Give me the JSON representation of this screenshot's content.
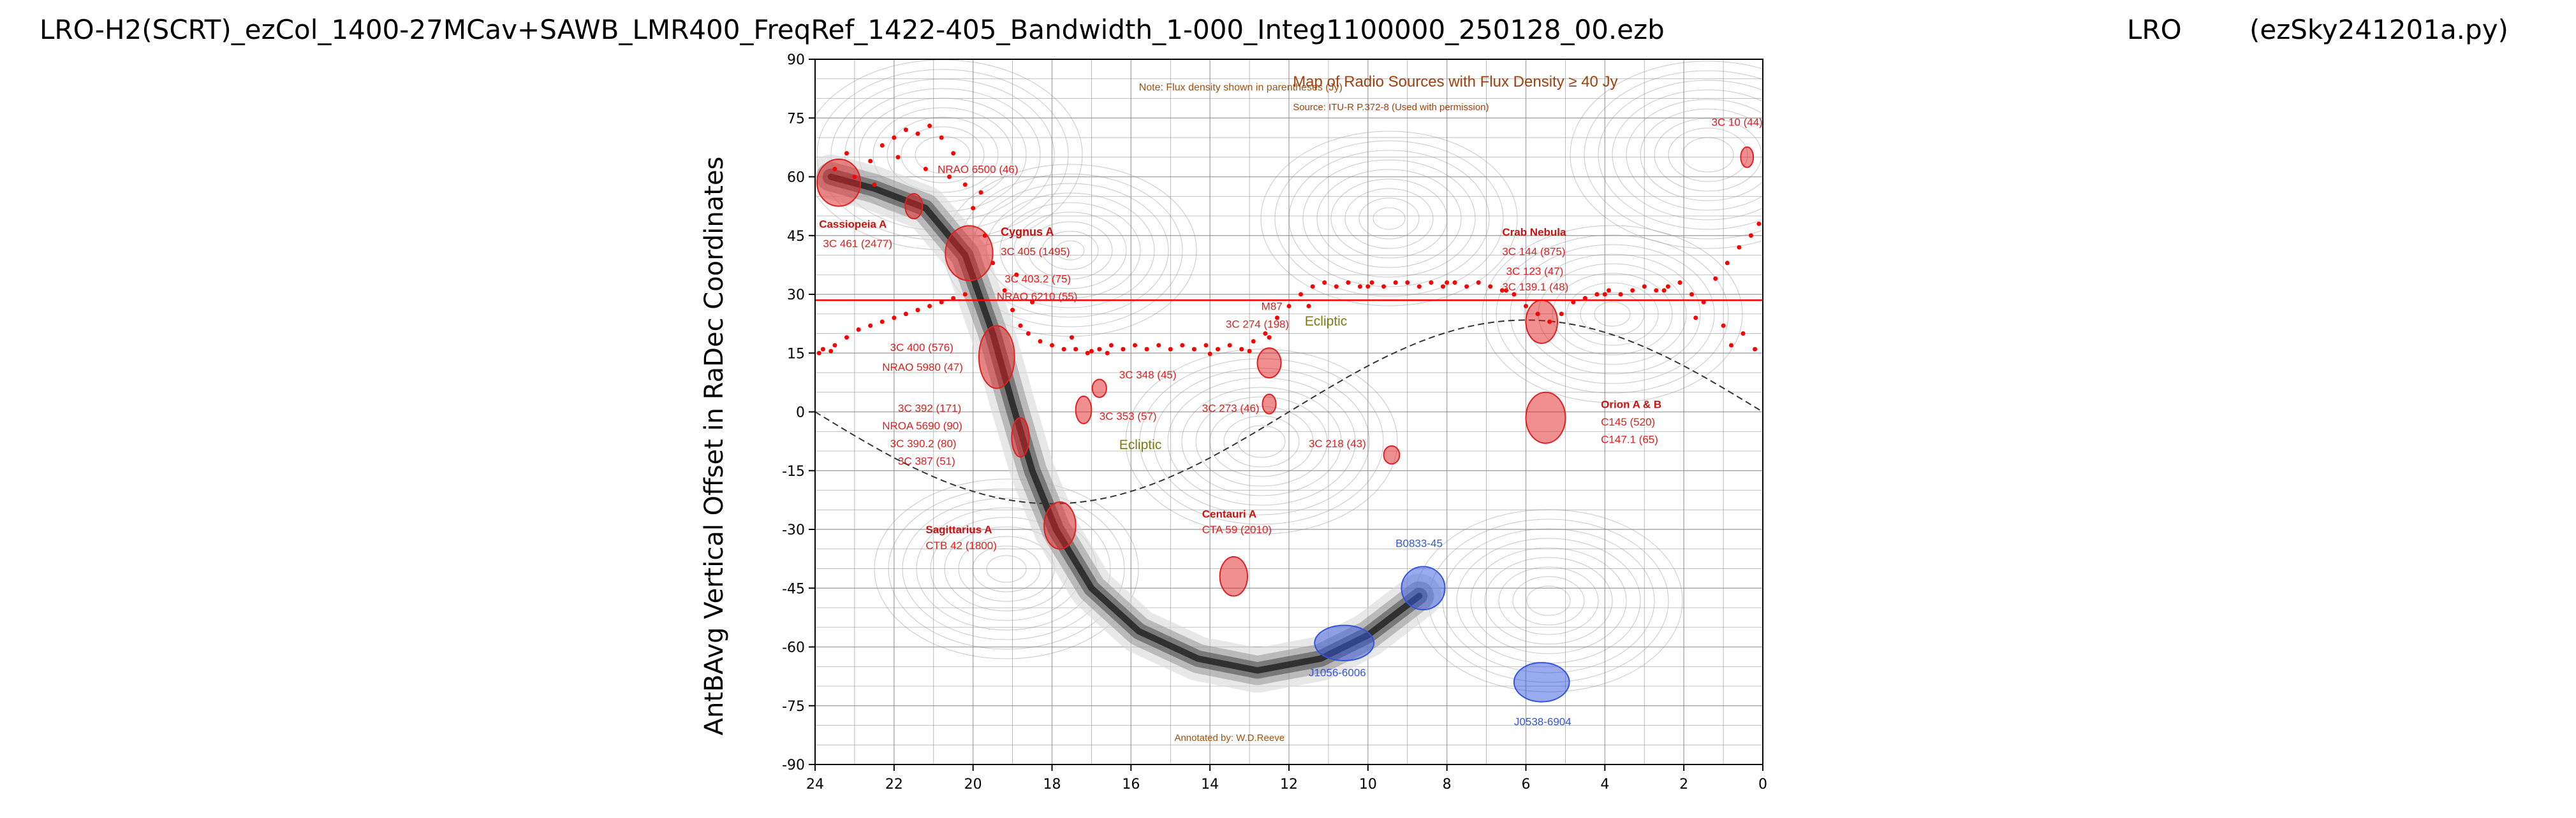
{
  "window": {
    "title_left": "LRO-H2(SCRT)_ezCol_1400-27MCav+SAWB_LMR400_FreqRef_1422-405_Bandwidth_1-000_Integ1100000_250128_00.ezb",
    "title_mid": "LRO",
    "title_right": "(ezSky241201a.py)"
  },
  "chart_data": {
    "type": "scatter",
    "title": "",
    "xlabel": "",
    "ylabel": "AntBAvg Vertical Offset in RaDec Coordinates",
    "xlim": [
      24,
      0
    ],
    "ylim": [
      -90,
      90
    ],
    "x_ticks": [
      24,
      22,
      20,
      18,
      16,
      14,
      12,
      10,
      8,
      6,
      4,
      2,
      0
    ],
    "y_ticks": [
      90,
      75,
      60,
      45,
      30,
      15,
      0,
      -15,
      -30,
      -45,
      -60,
      -75,
      -90
    ],
    "reference_line_y": 28.5,
    "series": [
      {
        "values": [
          [
            23.5,
            62
          ],
          [
            23.2,
            66
          ],
          [
            23,
            60
          ],
          [
            22.6,
            64
          ],
          [
            22.3,
            68
          ],
          [
            22,
            70
          ],
          [
            21.7,
            72
          ],
          [
            21.4,
            71
          ],
          [
            21.1,
            73
          ],
          [
            20.8,
            70
          ],
          [
            20.5,
            66
          ],
          [
            20.2,
            58
          ],
          [
            20,
            52
          ],
          [
            19.7,
            45
          ],
          [
            19.5,
            38
          ],
          [
            19.2,
            31
          ],
          [
            19,
            26
          ],
          [
            18.8,
            22
          ],
          [
            18.6,
            20
          ],
          [
            18.3,
            18
          ],
          [
            18,
            17
          ],
          [
            17.7,
            16
          ],
          [
            17.4,
            16
          ],
          [
            17.1,
            15
          ],
          [
            16.8,
            16
          ],
          [
            16.5,
            17
          ],
          [
            16.2,
            16
          ],
          [
            15.9,
            17
          ],
          [
            15.6,
            16
          ],
          [
            15.3,
            17
          ],
          [
            15,
            16
          ],
          [
            14.7,
            17
          ],
          [
            14.4,
            16
          ],
          [
            14.1,
            17
          ],
          [
            13.8,
            16
          ],
          [
            13.5,
            17
          ],
          [
            13.2,
            16
          ],
          [
            12.9,
            18
          ],
          [
            12.6,
            20
          ],
          [
            12.3,
            24
          ],
          [
            12,
            27
          ],
          [
            11.7,
            30
          ],
          [
            11.4,
            32
          ],
          [
            11.1,
            33
          ],
          [
            10.8,
            32
          ],
          [
            10.5,
            33
          ],
          [
            10.2,
            32
          ],
          [
            9.9,
            33
          ],
          [
            9.6,
            32
          ],
          [
            9.3,
            33
          ],
          [
            9,
            33
          ],
          [
            8.7,
            32
          ],
          [
            8.4,
            33
          ],
          [
            8.1,
            32
          ],
          [
            7.8,
            33
          ],
          [
            7.5,
            32
          ],
          [
            7.2,
            33
          ],
          [
            6.9,
            32
          ],
          [
            6.6,
            31
          ],
          [
            6.3,
            30
          ],
          [
            6,
            27
          ],
          [
            5.7,
            25
          ],
          [
            5.4,
            23
          ],
          [
            5.1,
            25
          ],
          [
            4.8,
            28
          ],
          [
            4.5,
            29
          ],
          [
            4.2,
            30
          ],
          [
            3.9,
            31
          ],
          [
            3.6,
            30
          ],
          [
            3.3,
            31
          ],
          [
            3,
            32
          ],
          [
            2.7,
            31
          ],
          [
            2.4,
            32
          ],
          [
            2.1,
            33
          ],
          [
            1.8,
            30
          ],
          [
            1.5,
            28
          ],
          [
            1.2,
            34
          ],
          [
            0.9,
            38
          ],
          [
            0.6,
            42
          ],
          [
            0.3,
            45
          ],
          [
            0.1,
            48
          ],
          [
            0.5,
            20
          ],
          [
            0.8,
            17
          ],
          [
            0.2,
            16
          ],
          [
            23.8,
            16
          ],
          [
            23.5,
            17
          ],
          [
            23.2,
            19
          ],
          [
            22.9,
            21
          ],
          [
            22.6,
            22
          ],
          [
            22.3,
            23
          ],
          [
            22,
            24
          ],
          [
            21.7,
            25
          ],
          [
            21.4,
            26
          ],
          [
            21.1,
            27
          ],
          [
            20.8,
            28
          ],
          [
            20.5,
            29
          ],
          [
            20.2,
            30
          ],
          [
            17,
            15.5
          ],
          [
            16.6,
            15
          ],
          [
            14,
            14.8
          ],
          [
            13,
            15.5
          ],
          [
            12.5,
            19
          ],
          [
            11.5,
            27
          ],
          [
            10,
            32
          ],
          [
            8,
            33
          ],
          [
            6.5,
            31
          ],
          [
            4,
            30
          ],
          [
            2.5,
            31
          ],
          [
            1,
            22
          ],
          [
            1.7,
            24
          ],
          [
            23.9,
            15
          ],
          [
            23.6,
            15.5
          ],
          [
            19.8,
            56
          ],
          [
            20.6,
            60
          ],
          [
            21.2,
            62
          ],
          [
            21.9,
            65
          ],
          [
            22.5,
            58
          ],
          [
            18.9,
            35
          ],
          [
            18.5,
            28
          ],
          [
            17.5,
            19
          ]
        ]
      }
    ],
    "radio_sources": [
      {
        "x": 23.4,
        "y": 58.5,
        "rx": 0.55,
        "ry": 6,
        "color": "#e02020"
      },
      {
        "x": 21.5,
        "y": 52.5,
        "rx": 0.22,
        "ry": 3.2,
        "color": "#e02020"
      },
      {
        "x": 20.1,
        "y": 40.5,
        "rx": 0.6,
        "ry": 7,
        "color": "#e02020"
      },
      {
        "x": 19.4,
        "y": 14,
        "rx": 0.45,
        "ry": 8,
        "color": "#e02020"
      },
      {
        "x": 18.8,
        "y": -6.5,
        "rx": 0.22,
        "ry": 5,
        "color": "#e02020"
      },
      {
        "x": 17.8,
        "y": -29,
        "rx": 0.4,
        "ry": 6,
        "color": "#e02020"
      },
      {
        "x": 17.2,
        "y": 0.5,
        "rx": 0.2,
        "ry": 3.5,
        "color": "#e02020"
      },
      {
        "x": 16.8,
        "y": 6,
        "rx": 0.18,
        "ry": 2.3,
        "color": "#e02020"
      },
      {
        "x": 13.4,
        "y": -42,
        "rx": 0.35,
        "ry": 5,
        "color": "#e02020"
      },
      {
        "x": 12.5,
        "y": 12.5,
        "rx": 0.3,
        "ry": 3.8,
        "color": "#e02020"
      },
      {
        "x": 12.5,
        "y": 2,
        "rx": 0.17,
        "ry": 2.5,
        "color": "#e02020"
      },
      {
        "x": 9.4,
        "y": -11,
        "rx": 0.2,
        "ry": 2.3,
        "color": "#e02020"
      },
      {
        "x": 5.6,
        "y": 23,
        "rx": 0.4,
        "ry": 5.5,
        "color": "#e02020"
      },
      {
        "x": 5.5,
        "y": -1.5,
        "rx": 0.5,
        "ry": 6.5,
        "color": "#e02020"
      },
      {
        "x": 0.4,
        "y": 65,
        "rx": 0.16,
        "ry": 2.6,
        "color": "#e02020"
      },
      {
        "x": 8.6,
        "y": -45,
        "rx": 0.55,
        "ry": 5.5,
        "color": "#3355dd"
      },
      {
        "x": 10.6,
        "y": -59,
        "rx": 0.75,
        "ry": 4.5,
        "color": "#3355dd"
      },
      {
        "x": 5.6,
        "y": -69,
        "rx": 0.7,
        "ry": 5,
        "color": "#3355dd"
      }
    ],
    "annotations": [
      {
        "x": 15.8,
        "y": 82,
        "text": "Note: Flux density shown in parentheses (Jy)",
        "color": "#a05010",
        "size": 16
      },
      {
        "x": 11.9,
        "y": 83,
        "text": "Map of Radio Sources with Flux Density ≥ 40 Jy",
        "color": "#a04010",
        "size": 24
      },
      {
        "x": 11.9,
        "y": 77,
        "text": "Source: ITU-R P.372-8 (Used with permission)",
        "color": "#a04010",
        "size": 15
      },
      {
        "x": 1.3,
        "y": 73,
        "text": "3C 10 (44)",
        "color": "#dd2020",
        "size": 17
      },
      {
        "x": 20.9,
        "y": 61,
        "text": "NRAO 6500 (46)",
        "color": "#dd2020",
        "size": 17
      },
      {
        "x": 23.9,
        "y": 47,
        "text": "Cassiopeia A",
        "color": "#cc1010",
        "size": 17,
        "bold": true
      },
      {
        "x": 23.8,
        "y": 42,
        "text": "3C 461 (2477)",
        "color": "#dd2020",
        "size": 17
      },
      {
        "x": 19.3,
        "y": 45,
        "text": "Cygnus A",
        "color": "#cc1010",
        "size": 18,
        "bold": true
      },
      {
        "x": 19.3,
        "y": 40,
        "text": "3C 405 (1495)",
        "color": "#dd2020",
        "size": 17
      },
      {
        "x": 19.2,
        "y": 33,
        "text": "3C 403.2 (75)",
        "color": "#dd2020",
        "size": 17
      },
      {
        "x": 19.4,
        "y": 28.5,
        "text": "NRAO 6210 (55)",
        "color": "#dd2020",
        "size": 17
      },
      {
        "x": 22.1,
        "y": 15.5,
        "text": "3C 400 (576)",
        "color": "#dd2020",
        "size": 17
      },
      {
        "x": 22.3,
        "y": 10.5,
        "text": "NRAO 5980 (47)",
        "color": "#dd2020",
        "size": 17
      },
      {
        "x": 12.7,
        "y": 26,
        "text": "M87",
        "color": "#dd2020",
        "size": 17
      },
      {
        "x": 13.6,
        "y": 21.5,
        "text": "3C 274 (198)",
        "color": "#dd2020",
        "size": 17
      },
      {
        "x": 11.6,
        "y": 22,
        "text": "Ecliptic",
        "color": "#7a7a10",
        "size": 21
      },
      {
        "x": 6.6,
        "y": 45,
        "text": "Crab Nebula",
        "color": "#cc1010",
        "size": 17,
        "bold": true
      },
      {
        "x": 6.6,
        "y": 40,
        "text": "3C 144 (875)",
        "color": "#dd2020",
        "size": 17
      },
      {
        "x": 6.5,
        "y": 35,
        "text": "3C 123 (47)",
        "color": "#dd2020",
        "size": 17
      },
      {
        "x": 6.6,
        "y": 31,
        "text": "3C 139.1 (48)",
        "color": "#dd2020",
        "size": 17
      },
      {
        "x": 16.3,
        "y": 8.5,
        "text": "3C 348 (45)",
        "color": "#dd2020",
        "size": 17
      },
      {
        "x": 16.8,
        "y": -2,
        "text": "3C 353 (57)",
        "color": "#dd2020",
        "size": 17
      },
      {
        "x": 14.2,
        "y": 0,
        "text": "3C 273 (46)",
        "color": "#dd2020",
        "size": 17
      },
      {
        "x": 21.9,
        "y": 0,
        "text": "3C 392 (171)",
        "color": "#dd2020",
        "size": 17
      },
      {
        "x": 22.3,
        "y": -4.5,
        "text": "NROA 5690 (90)",
        "color": "#dd2020",
        "size": 17
      },
      {
        "x": 22.1,
        "y": -9,
        "text": "3C 390.2 (80)",
        "color": "#dd2020",
        "size": 17
      },
      {
        "x": 21.9,
        "y": -13.5,
        "text": "3C 387  (51)",
        "color": "#dd2020",
        "size": 17
      },
      {
        "x": 16.3,
        "y": -9.5,
        "text": "Ecliptic",
        "color": "#7a7a10",
        "size": 21
      },
      {
        "x": 11.5,
        "y": -9,
        "text": "3C 218 (43)",
        "color": "#dd2020",
        "size": 17
      },
      {
        "x": 4.1,
        "y": 1,
        "text": "Orion A & B",
        "color": "#cc1010",
        "size": 17,
        "bold": true
      },
      {
        "x": 4.1,
        "y": -3.5,
        "text": "C145 (520)",
        "color": "#dd2020",
        "size": 17
      },
      {
        "x": 4.1,
        "y": -8,
        "text": "C147.1 (65)",
        "color": "#dd2020",
        "size": 17
      },
      {
        "x": 21.2,
        "y": -31,
        "text": "Sagittarius A",
        "color": "#cc1010",
        "size": 17,
        "bold": true
      },
      {
        "x": 21.2,
        "y": -35,
        "text": "CTB 42 (1800)",
        "color": "#dd2020",
        "size": 17
      },
      {
        "x": 14.2,
        "y": -27,
        "text": "Centauri A",
        "color": "#cc1010",
        "size": 17,
        "bold": true
      },
      {
        "x": 14.2,
        "y": -31,
        "text": "CTA 59 (2010)",
        "color": "#dd2020",
        "size": 17
      },
      {
        "x": 9.3,
        "y": -34.5,
        "text": "B0833-45",
        "color": "#3355dd",
        "size": 17
      },
      {
        "x": 11.5,
        "y": -67.5,
        "text": "J1056-6006",
        "color": "#3355dd",
        "size": 17
      },
      {
        "x": 6.3,
        "y": -80,
        "text": "J0538-6904",
        "color": "#3355dd",
        "size": 17
      },
      {
        "x": 14.9,
        "y": -84,
        "text": "Annotated by: W.D.Reeve",
        "color": "#a05010",
        "size": 15
      }
    ]
  }
}
